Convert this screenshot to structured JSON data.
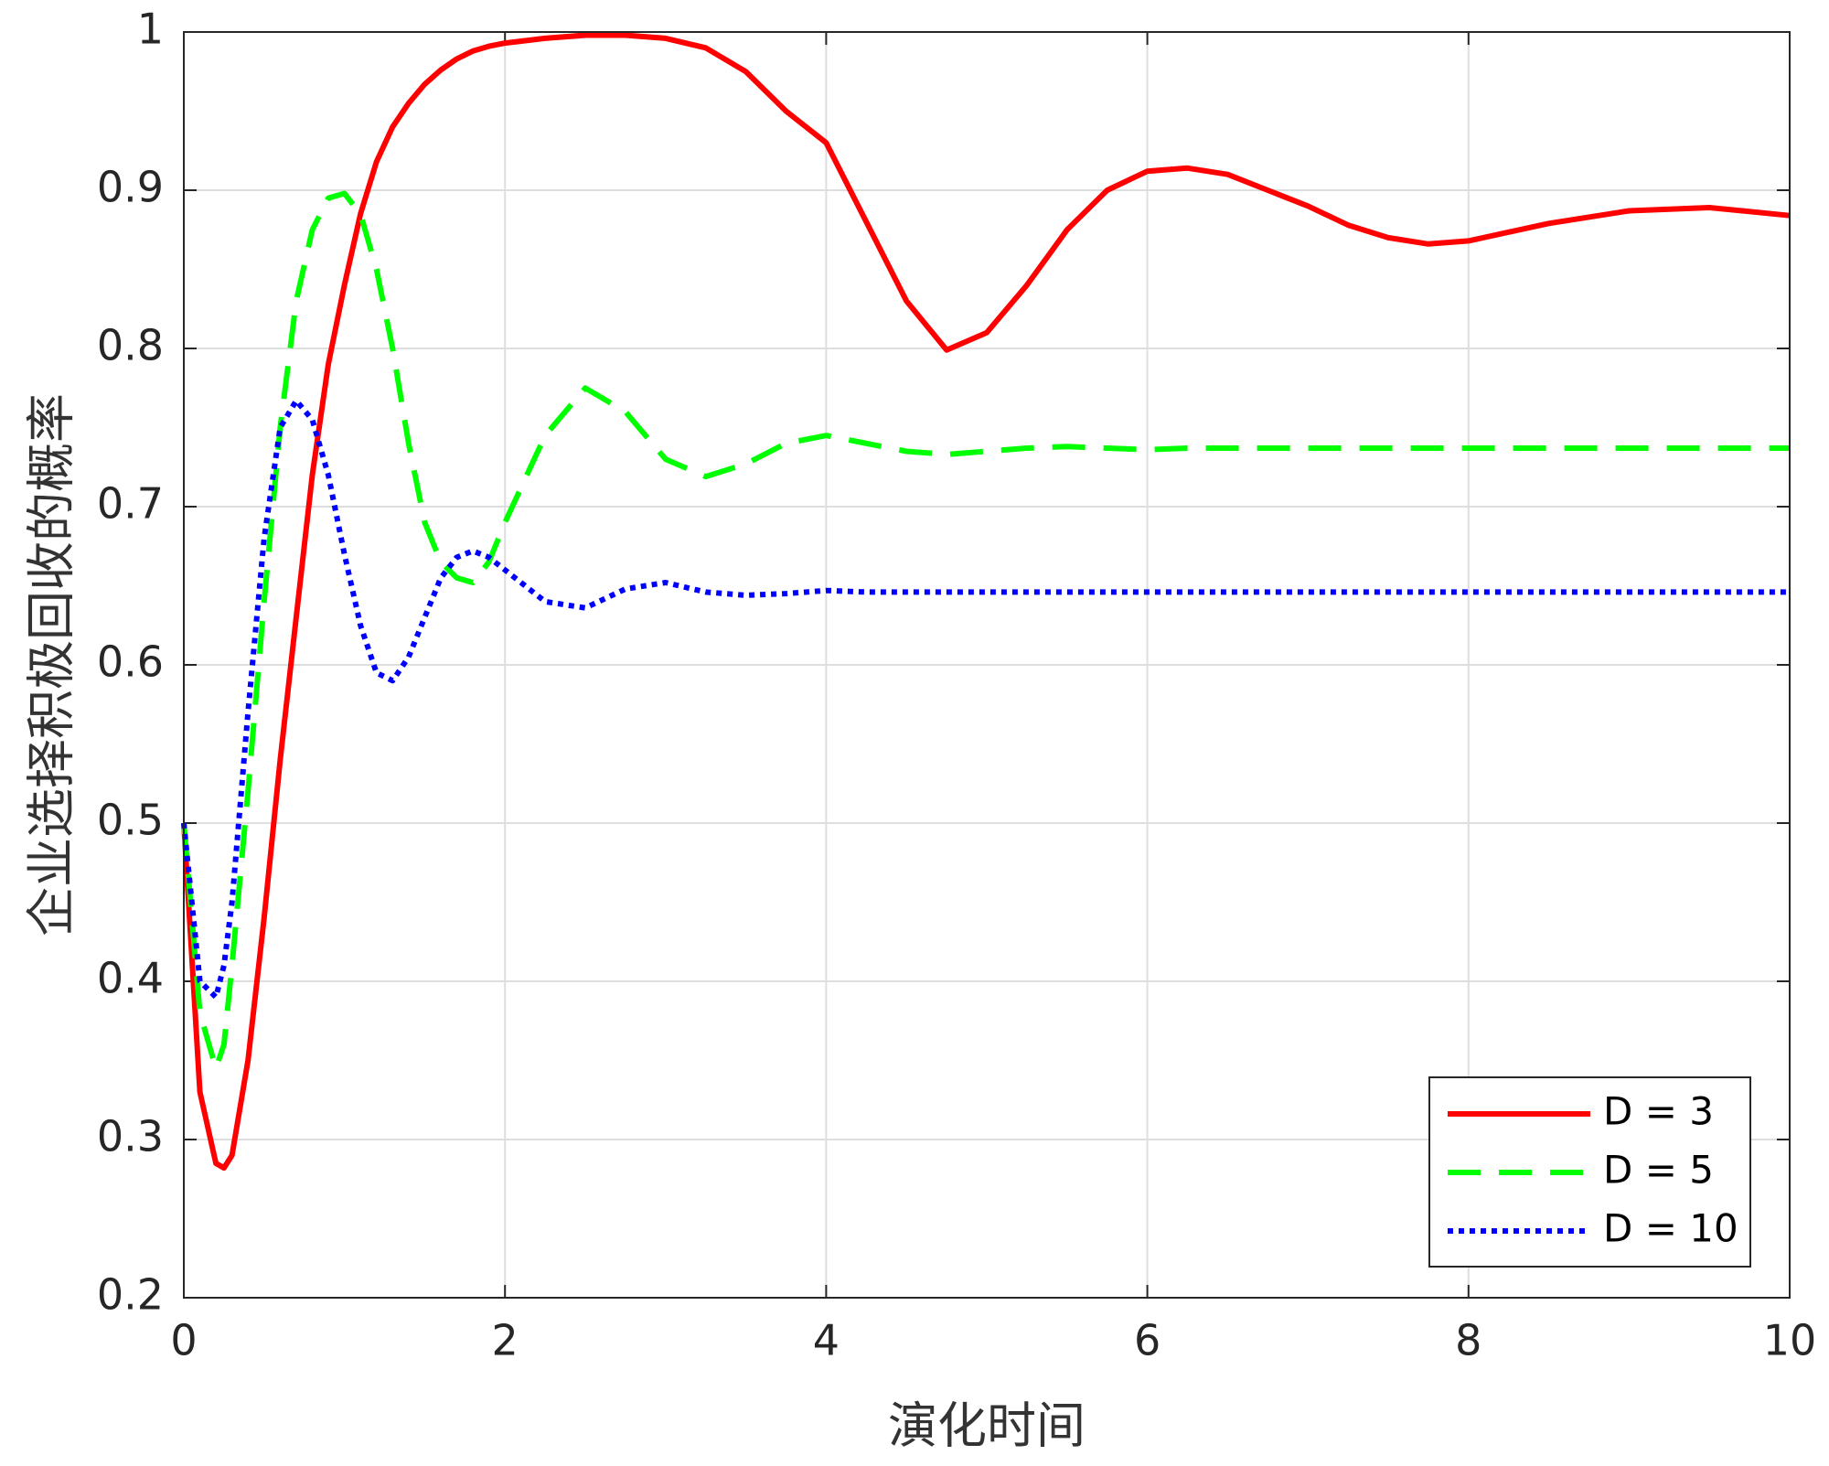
{
  "chart_data": {
    "type": "line",
    "x_label": "演化时间",
    "y_label": "企业选择积极回收的概率",
    "x": [
      0,
      0.1,
      0.2,
      0.25,
      0.3,
      0.4,
      0.5,
      0.6,
      0.7,
      0.8,
      0.9,
      1.0,
      1.1,
      1.2,
      1.3,
      1.4,
      1.5,
      1.6,
      1.7,
      1.8,
      1.9,
      2.0,
      2.25,
      2.5,
      2.75,
      3.0,
      3.25,
      3.5,
      3.75,
      4.0,
      4.25,
      4.5,
      4.75,
      5.0,
      5.25,
      5.5,
      5.75,
      6.0,
      6.25,
      6.5,
      6.75,
      7.0,
      7.25,
      7.5,
      7.75,
      8.0,
      8.5,
      9.0,
      9.5,
      10.0
    ],
    "series": [
      {
        "name": "D = 3",
        "color": "#ff0000",
        "style": "solid",
        "values": [
          0.5,
          0.33,
          0.285,
          0.282,
          0.29,
          0.35,
          0.44,
          0.54,
          0.63,
          0.72,
          0.79,
          0.84,
          0.885,
          0.918,
          0.94,
          0.955,
          0.967,
          0.976,
          0.983,
          0.988,
          0.991,
          0.993,
          0.996,
          0.998,
          0.998,
          0.996,
          0.99,
          0.975,
          0.95,
          0.93,
          0.88,
          0.83,
          0.799,
          0.81,
          0.84,
          0.875,
          0.9,
          0.912,
          0.914,
          0.91,
          0.9,
          0.89,
          0.878,
          0.87,
          0.866,
          0.868,
          0.879,
          0.887,
          0.889,
          0.884
        ]
      },
      {
        "name": "D = 5",
        "color": "#00ff00",
        "style": "dashed",
        "values": [
          0.5,
          0.38,
          0.345,
          0.36,
          0.41,
          0.52,
          0.64,
          0.75,
          0.83,
          0.875,
          0.895,
          0.898,
          0.885,
          0.85,
          0.8,
          0.74,
          0.69,
          0.665,
          0.655,
          0.652,
          0.665,
          0.69,
          0.745,
          0.775,
          0.76,
          0.73,
          0.719,
          0.727,
          0.74,
          0.745,
          0.74,
          0.735,
          0.733,
          0.735,
          0.737,
          0.738,
          0.737,
          0.736,
          0.737,
          0.737,
          0.737,
          0.737,
          0.737,
          0.737,
          0.737,
          0.737,
          0.737,
          0.737,
          0.737,
          0.737
        ]
      },
      {
        "name": "D = 10",
        "color": "#0000ff",
        "style": "dotted",
        "values": [
          0.5,
          0.4,
          0.39,
          0.41,
          0.45,
          0.57,
          0.68,
          0.75,
          0.767,
          0.755,
          0.72,
          0.67,
          0.625,
          0.595,
          0.59,
          0.605,
          0.63,
          0.655,
          0.668,
          0.672,
          0.668,
          0.66,
          0.64,
          0.636,
          0.648,
          0.652,
          0.646,
          0.644,
          0.645,
          0.647,
          0.646,
          0.646,
          0.646,
          0.646,
          0.646,
          0.646,
          0.646,
          0.646,
          0.646,
          0.646,
          0.646,
          0.646,
          0.646,
          0.646,
          0.646,
          0.646,
          0.646,
          0.646,
          0.646,
          0.646
        ]
      }
    ],
    "xlim": [
      0,
      10
    ],
    "xticks": [
      0,
      2,
      4,
      6,
      8,
      10
    ],
    "ylim": [
      0.2,
      1
    ],
    "yticks": [
      0.2,
      0.3,
      0.4,
      0.5,
      0.6,
      0.7,
      0.8,
      0.9,
      1
    ],
    "grid": true,
    "legend": "lower-right"
  }
}
